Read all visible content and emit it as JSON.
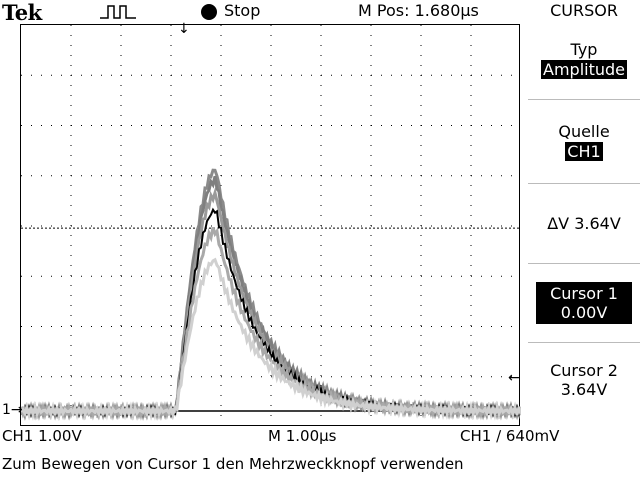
{
  "header": {
    "brand": "Tek",
    "acquisition_state": "Stop",
    "horizontal_position": "M Pos: 1.680µs",
    "menu_title": "CURSOR"
  },
  "menu": {
    "type": {
      "label": "Typ",
      "value": "Amplitude"
    },
    "source": {
      "label": "Quelle",
      "value": "CH1"
    },
    "delta": {
      "value": "ΔV 3.64V"
    },
    "cursor1": {
      "label": "Cursor 1",
      "value": "0.00V"
    },
    "cursor2": {
      "label": "Cursor 2",
      "value": "3.64V"
    }
  },
  "footer": {
    "ch1_scale": "CH1  1.00V",
    "time_base": "M 1.00µs",
    "trigger": "CH1 ∕ 640mV",
    "hint": "Zum Bewegen von Cursor 1 den Mehrzweckknopf verwenden"
  },
  "markers": {
    "ch1_ground": "1→",
    "trigger_level": "←",
    "trigger_position": "↓"
  },
  "waveform": {
    "channel": "CH1",
    "pulse_peak_volts": [
      4.8,
      4.6,
      4.3,
      4.0,
      3.6,
      3.0
    ],
    "pulse_rise_division": 3.1,
    "pulse_peak_division": 3.9,
    "trigger_level_volts": 0.64,
    "cursor1_volts": 0.0,
    "cursor2_volts": 3.64
  }
}
